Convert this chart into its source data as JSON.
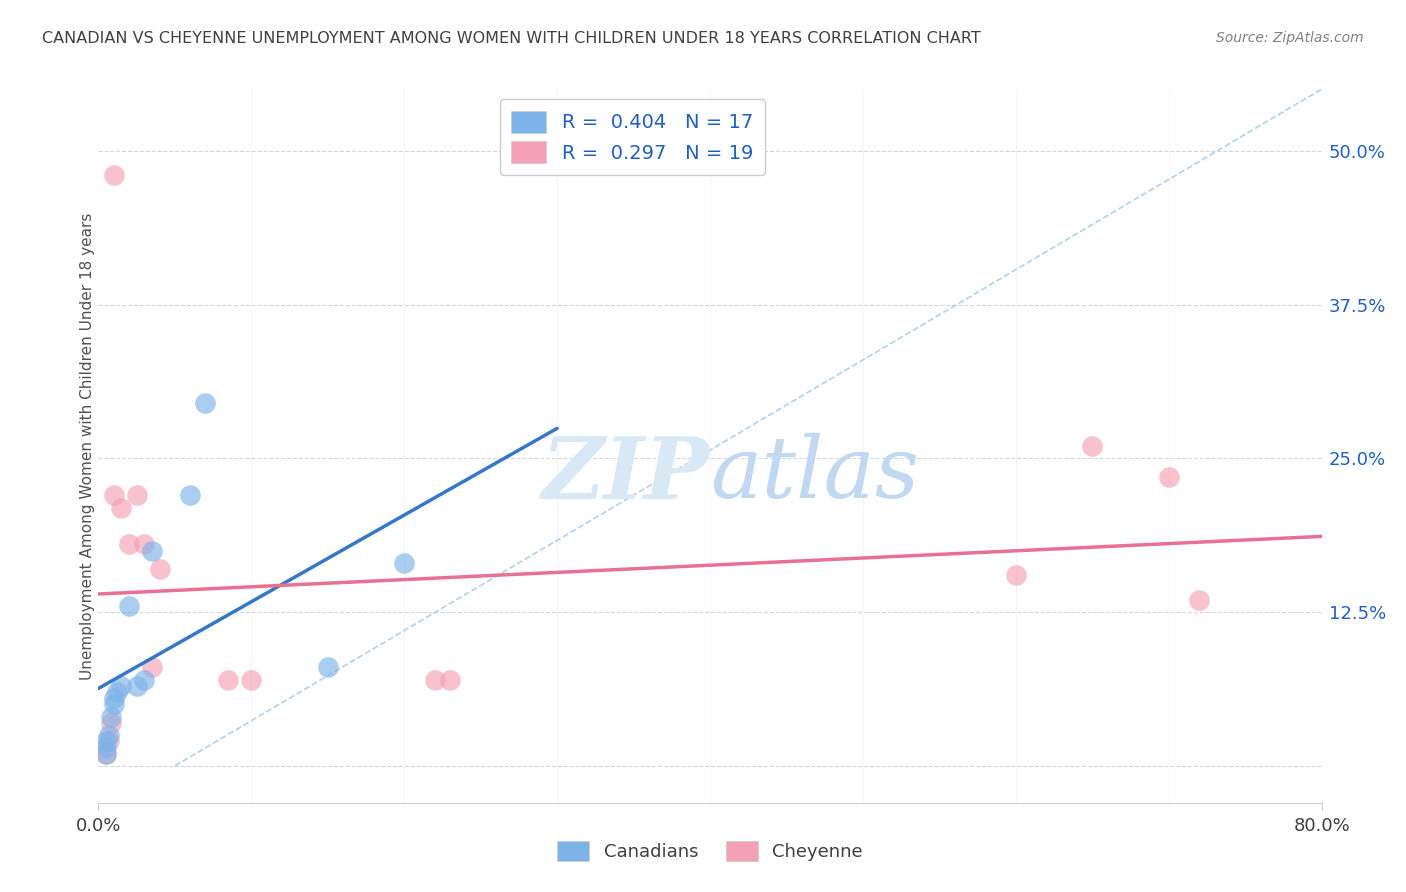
{
  "title": "CANADIAN VS CHEYENNE UNEMPLOYMENT AMONG WOMEN WITH CHILDREN UNDER 18 YEARS CORRELATION CHART",
  "source": "Source: ZipAtlas.com",
  "ylabel": "Unemployment Among Women with Children Under 18 years",
  "xlabel": "",
  "xlim": [
    0.0,
    0.8
  ],
  "ylim": [
    -0.03,
    0.55
  ],
  "yticks_right": [
    0.0,
    0.125,
    0.25,
    0.375,
    0.5
  ],
  "yticklabels_right": [
    "",
    "12.5%",
    "25.0%",
    "37.5%",
    "50.0%"
  ],
  "canadians_x": [
    0.005,
    0.005,
    0.005,
    0.007,
    0.008,
    0.01,
    0.01,
    0.012,
    0.015,
    0.02,
    0.025,
    0.03,
    0.035,
    0.06,
    0.07,
    0.15,
    0.2
  ],
  "canadians_y": [
    0.01,
    0.015,
    0.02,
    0.025,
    0.04,
    0.05,
    0.055,
    0.06,
    0.065,
    0.13,
    0.065,
    0.07,
    0.175,
    0.22,
    0.295,
    0.08,
    0.165
  ],
  "cheyenne_x": [
    0.005,
    0.007,
    0.008,
    0.01,
    0.01,
    0.015,
    0.02,
    0.025,
    0.03,
    0.035,
    0.04,
    0.085,
    0.1,
    0.22,
    0.23,
    0.6,
    0.65,
    0.7,
    0.72
  ],
  "cheyenne_y": [
    0.01,
    0.02,
    0.035,
    0.22,
    0.48,
    0.21,
    0.18,
    0.22,
    0.18,
    0.08,
    0.16,
    0.07,
    0.07,
    0.07,
    0.07,
    0.155,
    0.26,
    0.235,
    0.135
  ],
  "canadian_r": 0.404,
  "canadian_n": 17,
  "cheyenne_r": 0.297,
  "cheyenne_n": 19,
  "blue_color": "#7EB3E8",
  "pink_color": "#F4A0B5",
  "blue_line_color": "#3578C8",
  "pink_line_color": "#E87090",
  "dashed_line_color": "#AACCEE",
  "title_color": "#404040",
  "source_color": "#808080",
  "ylabel_color": "#505050",
  "right_tick_color": "#2060C0",
  "grid_color": "#CCCCCC",
  "background_color": "#FFFFFF",
  "watermark_color": "#D8E8F5",
  "watermark_text": "ZIPatlas"
}
